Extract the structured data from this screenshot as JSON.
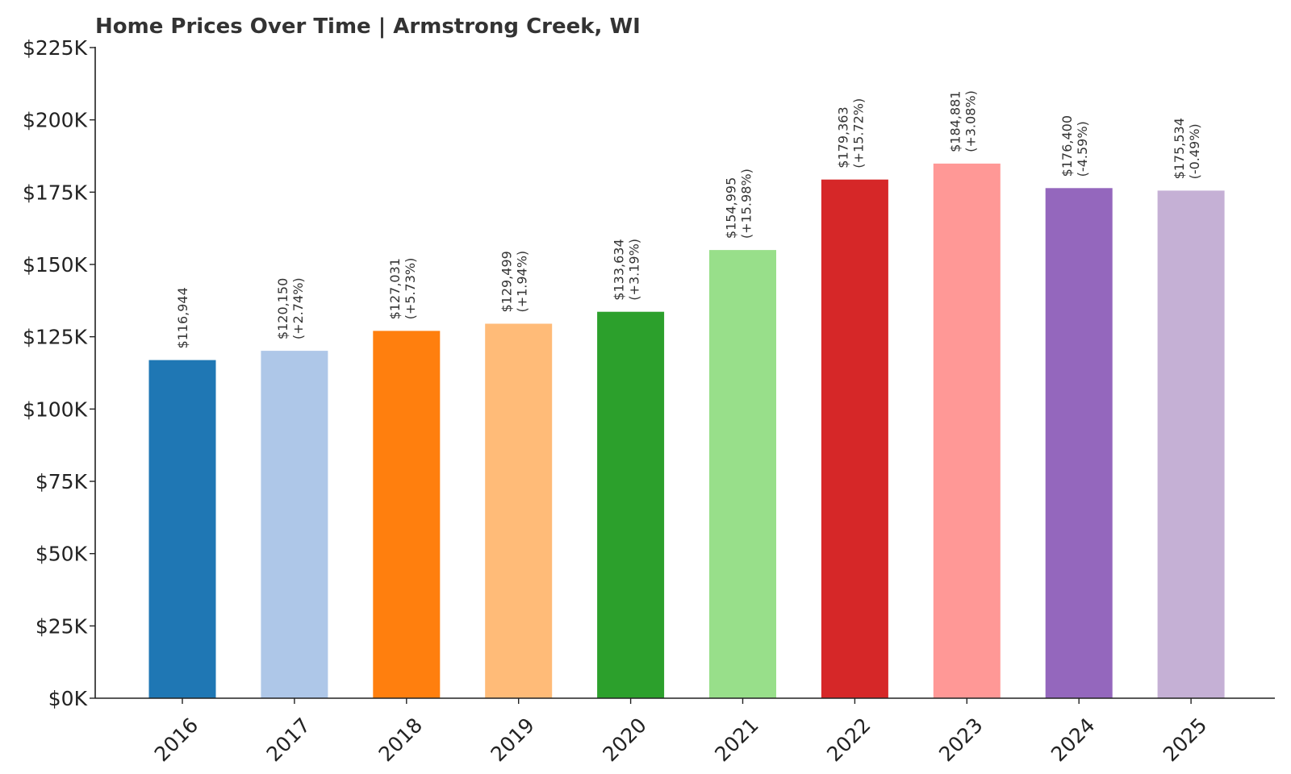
{
  "chart_data": {
    "type": "bar",
    "title": "Home Prices Over Time | Armstrong Creek, WI",
    "xlabel": "",
    "ylabel": "",
    "categories": [
      "2016",
      "2017",
      "2018",
      "2019",
      "2020",
      "2021",
      "2022",
      "2023",
      "2024",
      "2025"
    ],
    "values": [
      116944,
      120150,
      127031,
      129499,
      133634,
      154995,
      179363,
      184881,
      176400,
      175534
    ],
    "value_labels": [
      "$116,944",
      "$120,150",
      "$127,031",
      "$129,499",
      "$133,634",
      "$154,995",
      "$179,363",
      "$184,881",
      "$176,400",
      "$175,534"
    ],
    "change_labels": [
      "",
      "(+2.74%)",
      "(+5.73%)",
      "(+1.94%)",
      "(+3.19%)",
      "(+15.98%)",
      "(+15.72%)",
      "(+3.08%)",
      "(-4.59%)",
      "(-0.49%)"
    ],
    "colors": [
      "#1f77b4",
      "#aec7e8",
      "#ff7f0e",
      "#ffbb78",
      "#2ca02c",
      "#98df8a",
      "#d62728",
      "#ff9896",
      "#9467bd",
      "#c5b0d5"
    ],
    "ylim": [
      0,
      225000
    ],
    "yticks": [
      0,
      25000,
      50000,
      75000,
      100000,
      125000,
      150000,
      175000,
      200000,
      225000
    ],
    "ytick_labels": [
      "$0K",
      "$25K",
      "$50K",
      "$75K",
      "$100K",
      "$125K",
      "$150K",
      "$175K",
      "$200K",
      "$225K"
    ],
    "grid": false,
    "legend": "none"
  }
}
